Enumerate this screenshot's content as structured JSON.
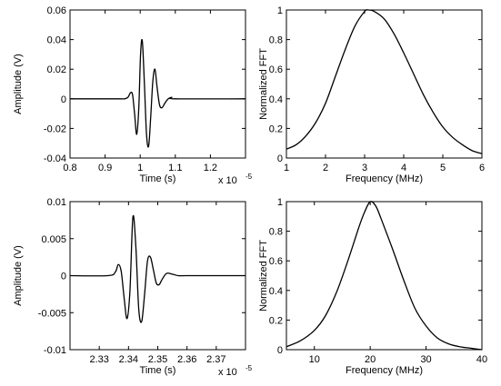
{
  "chart_data": [
    {
      "type": "line",
      "xlabel": "Time (s)",
      "ylabel": "Amplitude (V)",
      "xlim": [
        0.8,
        1.3
      ],
      "ylim": [
        -0.04,
        0.06
      ],
      "xticks": [
        "0.8",
        "0.9",
        "1",
        "1.1",
        "1.2"
      ],
      "yticks": [
        "-0.04",
        "-0.02",
        "0",
        "0.02",
        "0.04",
        "0.06"
      ],
      "x_multiplier": "x 10",
      "x_exponent": "-5",
      "series": [
        {
          "x": [
            0.8,
            0.94,
            0.955,
            0.965,
            0.972,
            0.978,
            0.984,
            0.99,
            0.996,
            1.001,
            1.006,
            1.012,
            1.018,
            1.024,
            1.03,
            1.036,
            1.042,
            1.048,
            1.055,
            1.062,
            1.07,
            1.08,
            1.09,
            1.1,
            1.3
          ],
          "y": [
            0.0,
            0.0,
            0.0,
            0.001,
            0.004,
            0.003,
            -0.01,
            -0.024,
            -0.006,
            0.03,
            0.039,
            0.01,
            -0.024,
            -0.032,
            -0.012,
            0.012,
            0.02,
            0.008,
            -0.004,
            -0.006,
            -0.003,
            0.0,
            0.001,
            0.0,
            0.0
          ]
        }
      ]
    },
    {
      "type": "line",
      "xlabel": "Frequency (MHz)",
      "ylabel": "Normalized FFT",
      "xlim": [
        1,
        6
      ],
      "ylim": [
        0,
        1
      ],
      "xticks": [
        "1",
        "2",
        "3",
        "4",
        "5",
        "6"
      ],
      "yticks": [
        "0",
        "0.2",
        "0.4",
        "0.6",
        "0.8",
        "1"
      ],
      "series": [
        {
          "x": [
            1.0,
            1.25,
            1.5,
            1.75,
            2.0,
            2.25,
            2.5,
            2.75,
            3.0,
            3.1,
            3.25,
            3.5,
            3.75,
            4.0,
            4.25,
            4.5,
            4.75,
            5.0,
            5.25,
            5.5,
            5.75,
            6.0
          ],
          "y": [
            0.06,
            0.09,
            0.15,
            0.24,
            0.37,
            0.55,
            0.73,
            0.89,
            0.99,
            1.0,
            0.99,
            0.94,
            0.84,
            0.71,
            0.57,
            0.43,
            0.31,
            0.21,
            0.14,
            0.09,
            0.05,
            0.03
          ]
        }
      ]
    },
    {
      "type": "line",
      "xlabel": "Time (s)",
      "ylabel": "Amplitude (V)",
      "xlim": [
        2.32,
        2.38
      ],
      "ylim": [
        -0.01,
        0.01
      ],
      "xticks": [
        "2.33",
        "2.34",
        "2.35",
        "2.36",
        "2.37"
      ],
      "yticks": [
        "-0.01",
        "-0.005",
        "0",
        "0.005",
        "0.01"
      ],
      "x_multiplier": "x 10",
      "x_exponent": "-5",
      "series": [
        {
          "x": [
            2.32,
            2.333,
            2.3355,
            2.3365,
            2.3375,
            2.3385,
            2.3395,
            2.3405,
            2.3415,
            2.3425,
            2.3435,
            2.3445,
            2.3455,
            2.3465,
            2.3475,
            2.3485,
            2.3495,
            2.3505,
            2.3515,
            2.353,
            2.355,
            2.357,
            2.36,
            2.38
          ],
          "y": [
            0.0,
            0.0,
            0.0005,
            0.0015,
            0.0006,
            -0.003,
            -0.0058,
            -0.002,
            0.0079,
            0.004,
            -0.0045,
            -0.0062,
            -0.0025,
            0.002,
            0.0025,
            0.0008,
            -0.001,
            -0.0012,
            -0.0005,
            0.0003,
            0.0002,
            0.0,
            0.0,
            0.0
          ]
        }
      ]
    },
    {
      "type": "line",
      "xlabel": "Frequency (MHz)",
      "ylabel": "Normalized FFT",
      "xlim": [
        5,
        40
      ],
      "ylim": [
        0,
        1
      ],
      "xticks": [
        "10",
        "20",
        "30",
        "40"
      ],
      "yticks": [
        "0",
        "0.2",
        "0.4",
        "0.6",
        "0.8",
        "1"
      ],
      "series": [
        {
          "x": [
            5,
            7.5,
            10,
            12,
            14,
            16,
            18,
            19,
            20,
            21,
            22,
            24,
            26,
            28,
            30,
            32,
            34,
            36,
            38,
            40
          ],
          "y": [
            0.02,
            0.06,
            0.13,
            0.23,
            0.39,
            0.6,
            0.83,
            0.93,
            1.0,
            0.97,
            0.88,
            0.68,
            0.47,
            0.28,
            0.16,
            0.08,
            0.04,
            0.02,
            0.01,
            0.0
          ]
        }
      ]
    }
  ]
}
